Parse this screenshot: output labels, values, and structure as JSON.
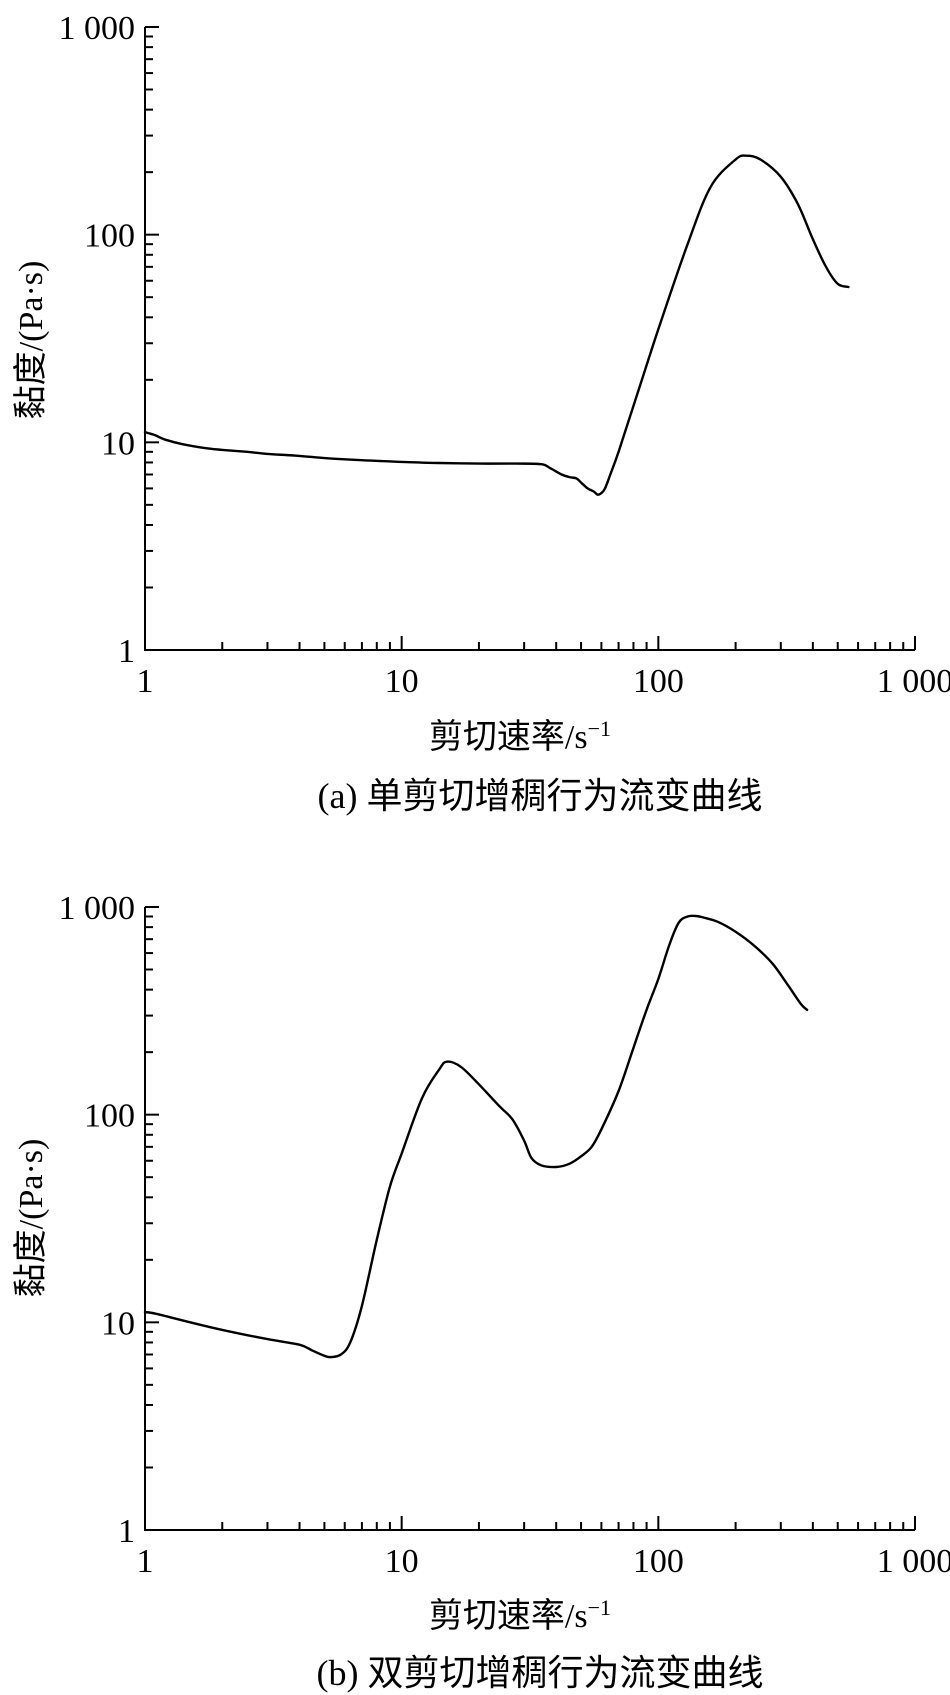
{
  "chart_data": [
    {
      "type": "line",
      "panel": "a",
      "caption": "(a) 单剪切增稠行为流变曲线",
      "xlabel": "剪切速率/s",
      "xlabel_sup": "−1",
      "ylabel": "黏度/(Pa·s)",
      "xscale": "log",
      "yscale": "log",
      "xlim": [
        1,
        1000
      ],
      "ylim": [
        1,
        1000
      ],
      "xticks": [
        {
          "value": 1,
          "label": "1"
        },
        {
          "value": 10,
          "label": "10"
        },
        {
          "value": 100,
          "label": "100"
        },
        {
          "value": 1000,
          "label": "1 000"
        }
      ],
      "yticks": [
        {
          "value": 1,
          "label": "1"
        },
        {
          "value": 10,
          "label": "10"
        },
        {
          "value": 100,
          "label": "100"
        },
        {
          "value": 1000,
          "label": "1 000"
        }
      ],
      "grid": false,
      "series": [
        {
          "x": [
            1.0,
            1.05,
            1.1,
            1.2,
            1.4,
            1.7,
            2,
            2.5,
            3,
            4,
            5,
            7,
            10,
            14,
            20,
            28,
            35,
            38,
            42,
            45,
            48,
            50,
            53,
            56,
            58,
            60,
            62,
            65,
            70,
            80,
            100,
            130,
            160,
            200,
            220,
            250,
            300,
            350,
            400,
            450,
            500,
            550
          ],
          "y": [
            11.2,
            11.0,
            10.8,
            10.3,
            9.8,
            9.4,
            9.2,
            9.0,
            8.8,
            8.6,
            8.4,
            8.2,
            8.05,
            7.95,
            7.9,
            7.9,
            7.85,
            7.5,
            7.0,
            6.8,
            6.7,
            6.4,
            6.0,
            5.8,
            5.6,
            5.7,
            6.0,
            7.0,
            9.0,
            15.0,
            35.0,
            90.0,
            170.0,
            230.0,
            240.0,
            230.0,
            190.0,
            140.0,
            95.0,
            70.0,
            58.0,
            56.0
          ]
        }
      ]
    },
    {
      "type": "line",
      "panel": "b",
      "caption": "(b) 双剪切增稠行为流变曲线",
      "xlabel": "剪切速率/s",
      "xlabel_sup": "−1",
      "ylabel": "黏度/(Pa·s)",
      "xscale": "log",
      "yscale": "log",
      "xlim": [
        1,
        1000
      ],
      "ylim": [
        1,
        1000
      ],
      "xticks": [
        {
          "value": 1,
          "label": "1"
        },
        {
          "value": 10,
          "label": "10"
        },
        {
          "value": 100,
          "label": "100"
        },
        {
          "value": 1000,
          "label": "1 000"
        }
      ],
      "yticks": [
        {
          "value": 1,
          "label": "1"
        },
        {
          "value": 10,
          "label": "10"
        },
        {
          "value": 100,
          "label": "100"
        },
        {
          "value": 1000,
          "label": "1 000"
        }
      ],
      "grid": false,
      "series": [
        {
          "x": [
            1.0,
            1.1,
            1.5,
            2,
            3,
            4,
            4.5,
            5,
            5.3,
            5.8,
            6.3,
            7,
            8,
            9,
            10,
            12,
            14,
            15,
            17,
            20,
            24,
            27,
            30,
            32,
            35,
            40,
            45,
            50,
            55,
            60,
            70,
            80,
            90,
            100,
            110,
            120,
            130,
            140,
            150,
            170,
            200,
            240,
            280,
            320,
            360,
            380
          ],
          "y": [
            11.2,
            11.0,
            10.0,
            9.2,
            8.3,
            7.8,
            7.3,
            6.9,
            6.8,
            7.0,
            8.0,
            12.0,
            25.0,
            45.0,
            65.0,
            120.0,
            165.0,
            180.0,
            170.0,
            140.0,
            110.0,
            95.0,
            75.0,
            62.0,
            57.0,
            56.0,
            58.0,
            63.0,
            70.0,
            85.0,
            130.0,
            210.0,
            320.0,
            450.0,
            650.0,
            840.0,
            900.0,
            905.0,
            890.0,
            850.0,
            760.0,
            640.0,
            530.0,
            420.0,
            340.0,
            320.0
          ]
        }
      ]
    }
  ]
}
